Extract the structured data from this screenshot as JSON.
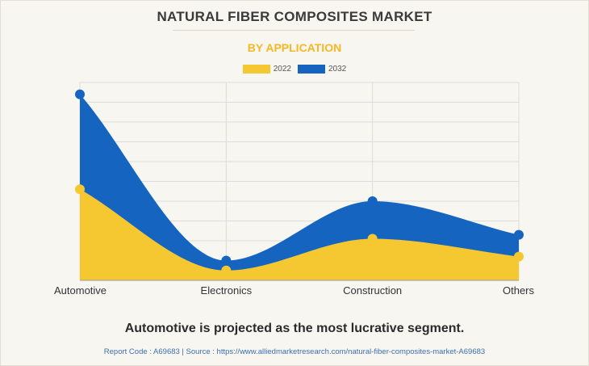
{
  "header": {
    "title": "NATURAL FIBER COMPOSITES MARKET",
    "subtitle": "BY APPLICATION"
  },
  "colors": {
    "series_2022": "#f5c730",
    "series_2032": "#1565c0",
    "subtitle": "#f5b825",
    "grid": "#dcdcdc"
  },
  "chart_data": {
    "type": "area",
    "title": "NATURAL FIBER COMPOSITES MARKET",
    "subtitle": "BY APPLICATION",
    "categories": [
      "Automotive",
      "Electronics",
      "Construction",
      "Others"
    ],
    "series": [
      {
        "name": "2022",
        "values": [
          46,
          5,
          21,
          12
        ]
      },
      {
        "name": "2032",
        "values": [
          94,
          10,
          40,
          23
        ]
      }
    ],
    "ylim": [
      0,
      100
    ],
    "grid": true,
    "legend": "top-center",
    "xlabel": "",
    "ylabel": ""
  },
  "caption": "Automotive is projected as the most lucrative segment.",
  "footer": "Report Code : A69683  |  Source : https://www.alliedmarketresearch.com/natural-fiber-composites-market-A69683"
}
